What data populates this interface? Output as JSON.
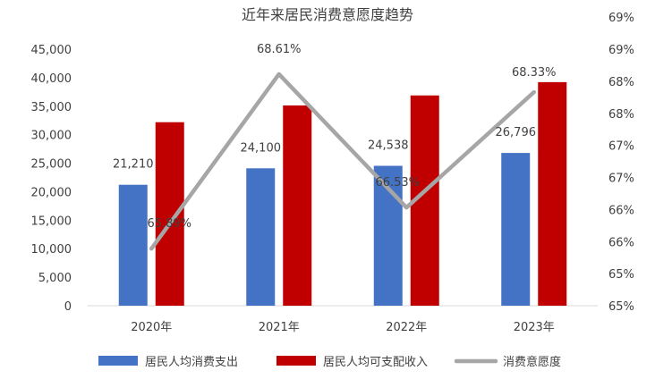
{
  "chart_data": {
    "type": "bar",
    "title": "近年来居民消费意愿度趋势",
    "categories": [
      "2020年",
      "2021年",
      "2022年",
      "2023年"
    ],
    "y_left": {
      "min": 0,
      "max": 45000,
      "step": 5000,
      "tick_labels": [
        "0",
        "5,000",
        "10,000",
        "15,000",
        "20,000",
        "25,000",
        "30,000",
        "35,000",
        "40,000",
        "45,000"
      ]
    },
    "y_right": {
      "min": 0.65,
      "max": 0.69,
      "step": 0.005,
      "tick_labels": [
        "65%",
        "65%",
        "66%",
        "66%",
        "67%",
        "67%",
        "68%",
        "68%",
        "69%",
        "69%"
      ]
    },
    "series": [
      {
        "name": "居民人均消费支出",
        "kind": "bar",
        "axis": "left",
        "color": "#4472C4",
        "values": [
          21210,
          24100,
          24538,
          26796
        ],
        "labels": [
          "21,210",
          "24,100",
          "24,538",
          "26,796"
        ]
      },
      {
        "name": "居民人均可支配收入",
        "kind": "bar",
        "axis": "left",
        "color": "#C00000",
        "values": [
          32189,
          35128,
          36883,
          39218
        ],
        "labels": []
      },
      {
        "name": "消费意愿度",
        "kind": "line",
        "axis": "right",
        "color": "#A6A6A6",
        "values": [
          0.6589,
          0.6861,
          0.6653,
          0.6833
        ],
        "labels": [
          "65.89%",
          "68.61%",
          "66.53%",
          "68.33%"
        ]
      }
    ],
    "legend_position": "bottom",
    "grid": false
  }
}
